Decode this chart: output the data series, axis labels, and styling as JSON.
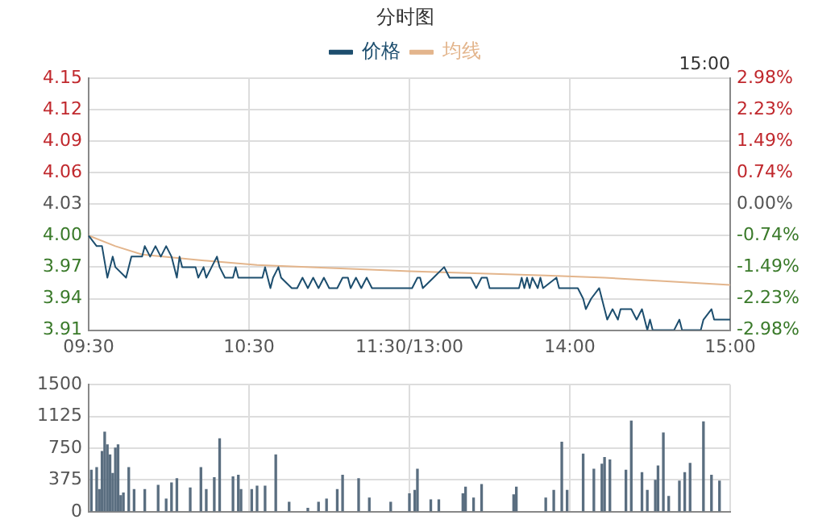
{
  "chart_data": [
    {
      "type": "line",
      "title": "分时图",
      "annotations": [
        "15:00"
      ],
      "categories": [
        "09:30",
        null,
        null,
        null,
        null,
        null,
        null,
        null,
        null,
        null,
        null,
        null,
        null,
        null,
        null,
        null,
        null,
        null,
        null,
        null,
        null,
        null,
        null,
        null,
        null,
        null,
        null,
        null,
        null,
        null,
        null,
        null,
        null,
        null,
        null,
        null,
        null,
        null,
        null,
        null,
        null,
        null,
        null,
        null,
        null,
        null,
        null,
        null,
        null,
        null,
        null,
        null,
        null,
        null,
        null,
        null,
        null,
        null,
        null,
        null,
        "10:30",
        null,
        null,
        null,
        null,
        null,
        null,
        null,
        null,
        null,
        null,
        null,
        null,
        null,
        null,
        null,
        null,
        null,
        null,
        null,
        null,
        null,
        null,
        null,
        null,
        null,
        null,
        null,
        null,
        null,
        null,
        null,
        null,
        null,
        null,
        null,
        null,
        null,
        null,
        null,
        null,
        null,
        null,
        null,
        null,
        null,
        null,
        null,
        null,
        null,
        null,
        null,
        null,
        null,
        null,
        null,
        null,
        null,
        null,
        null,
        "11:30/13:00",
        null,
        null,
        null,
        null,
        null,
        null,
        null,
        null,
        null,
        null,
        null,
        null,
        null,
        null,
        null,
        null,
        null,
        null,
        null,
        null,
        null,
        null,
        null,
        null,
        null,
        null,
        null,
        null,
        null,
        null,
        null,
        null,
        null,
        null,
        null,
        null,
        null,
        null,
        null,
        null,
        null,
        null,
        null,
        null,
        null,
        null,
        null,
        null,
        null,
        null,
        null,
        null,
        null,
        null,
        null,
        null,
        null,
        null,
        null,
        "14:00",
        null,
        null,
        null,
        null,
        null,
        null,
        null,
        null,
        null,
        null,
        null,
        null,
        null,
        null,
        null,
        null,
        null,
        null,
        null,
        null,
        null,
        null,
        null,
        null,
        null,
        null,
        null,
        null,
        null,
        null,
        null,
        null,
        null,
        null,
        null,
        null,
        null,
        null,
        null,
        null,
        null,
        null,
        null,
        null,
        null,
        null,
        null,
        null,
        null,
        null,
        null,
        null,
        null,
        null,
        null,
        null,
        null,
        null,
        null,
        "15:00"
      ],
      "ylim": [
        3.91,
        4.15
      ],
      "yticks": [
        {
          "value": 3.91,
          "label": "3.91"
        },
        {
          "value": 3.94,
          "label": "3.94"
        },
        {
          "value": 3.97,
          "label": "3.97"
        },
        {
          "value": 4,
          "label": "4.00"
        },
        {
          "value": 4.03,
          "label": "4.03"
        },
        {
          "value": 4.06,
          "label": "4.06"
        },
        {
          "value": 4.09,
          "label": "4.09"
        },
        {
          "value": 4.12,
          "label": "4.12"
        },
        {
          "value": 4.15,
          "label": "4.15"
        }
      ],
      "y2lim": [
        -2.98,
        2.98
      ],
      "y2ticks": [
        {
          "value": -2.98,
          "label": "-2.98%"
        },
        {
          "value": -2.23,
          "label": "-2.23%"
        },
        {
          "value": -1.49,
          "label": "-1.49%"
        },
        {
          "value": -0.74,
          "label": "-0.74%"
        },
        {
          "value": 0,
          "label": "0.00%"
        },
        {
          "value": 0.74,
          "label": "0.74%"
        },
        {
          "value": 1.49,
          "label": "1.49%"
        },
        {
          "value": 2.23,
          "label": "2.23%"
        },
        {
          "value": 2.98,
          "label": "2.98%"
        }
      ],
      "grid": true,
      "legend": "top",
      "marker": "none",
      "series": [
        {
          "name": "价格",
          "color": "#1d4e6e",
          "values": [
            4.0,
            null,
            null,
            3.99,
            null,
            3.99,
            null,
            3.96,
            null,
            3.98,
            3.97,
            null,
            null,
            null,
            3.96,
            null,
            3.98,
            null,
            null,
            null,
            3.98,
            3.99,
            null,
            3.98,
            null,
            3.99,
            null,
            3.98,
            null,
            3.99,
            null,
            3.98,
            null,
            3.96,
            3.98,
            3.97,
            null,
            null,
            null,
            null,
            3.97,
            3.96,
            null,
            3.97,
            3.96,
            null,
            3.97,
            null,
            3.98,
            3.97,
            null,
            3.96,
            null,
            null,
            3.96,
            3.97,
            3.96,
            null,
            null,
            null,
            null,
            null,
            null,
            null,
            null,
            3.96,
            3.97,
            null,
            3.95,
            3.96,
            null,
            3.97,
            3.96,
            null,
            null,
            null,
            3.95,
            null,
            3.95,
            null,
            3.96,
            null,
            3.95,
            null,
            3.96,
            null,
            3.95,
            null,
            3.96,
            null,
            3.95,
            null,
            null,
            3.95,
            null,
            3.96,
            null,
            3.96,
            3.95,
            null,
            3.96,
            null,
            3.95,
            null,
            3.96,
            null,
            3.95,
            null,
            null,
            null,
            null,
            null,
            null,
            null,
            3.95,
            null,
            null,
            null,
            null,
            null,
            null,
            3.95,
            null,
            3.96,
            3.96,
            3.95,
            null,
            null,
            null,
            3.96,
            null,
            null,
            null,
            3.97,
            null,
            3.96,
            null,
            null,
            null,
            null,
            null,
            null,
            null,
            3.96,
            null,
            3.95,
            null,
            3.96,
            null,
            3.96,
            3.95,
            null,
            null,
            null,
            null,
            null,
            null,
            null,
            null,
            null,
            null,
            3.95,
            3.96,
            3.95,
            3.96,
            3.95,
            3.96,
            null,
            3.95,
            3.96,
            3.95,
            null,
            null,
            null,
            null,
            3.96,
            3.95,
            null,
            null,
            null,
            null,
            null,
            null,
            3.95,
            null,
            3.94,
            3.93,
            null,
            3.94,
            null,
            null,
            3.95,
            null,
            3.93,
            3.92,
            null,
            3.93,
            null,
            3.92,
            3.93,
            null,
            null,
            null,
            3.93,
            null,
            3.92,
            null,
            3.93,
            null,
            3.91,
            3.92,
            3.91,
            null,
            null,
            null,
            null,
            null,
            null,
            null,
            3.91,
            null,
            3.92,
            3.91,
            null,
            null,
            null,
            null,
            null,
            null,
            3.91,
            3.92,
            null,
            null,
            3.93,
            3.92,
            null,
            null,
            null,
            null,
            null,
            3.92
          ]
        },
        {
          "name": "均线",
          "color": "#e3b58c",
          "values": [
            4.0,
            null,
            null,
            null,
            null,
            null,
            null,
            null,
            null,
            null,
            3.99,
            null,
            null,
            null,
            null,
            null,
            null,
            null,
            null,
            null,
            3.982,
            null,
            null,
            null,
            null,
            null,
            null,
            null,
            null,
            null,
            null,
            null,
            null,
            null,
            null,
            null,
            null,
            null,
            null,
            null,
            3.977,
            null,
            null,
            null,
            null,
            null,
            null,
            null,
            null,
            null,
            null,
            null,
            null,
            null,
            null,
            null,
            null,
            null,
            null,
            null,
            null,
            null,
            null,
            3.972,
            null,
            null,
            null,
            null,
            null,
            null,
            null,
            null,
            null,
            null,
            null,
            null,
            null,
            null,
            null,
            null,
            null,
            null,
            null,
            null,
            null,
            null,
            null,
            null,
            null,
            null,
            null,
            null,
            null,
            null,
            null,
            null,
            null,
            null,
            null,
            null,
            null,
            null,
            null,
            null,
            null,
            null,
            null,
            null,
            null,
            null,
            null,
            null,
            null,
            null,
            null,
            null,
            null,
            null,
            null,
            null,
            3.966,
            null,
            null,
            null,
            null,
            null,
            null,
            null,
            null,
            null,
            null,
            null,
            null,
            null,
            null,
            null,
            null,
            null,
            null,
            null,
            null,
            null,
            null,
            null,
            null,
            null,
            null,
            null,
            null,
            null,
            null,
            null,
            null,
            null,
            null,
            null,
            null,
            null,
            null,
            null,
            null,
            null,
            null,
            null,
            null,
            null,
            null,
            null,
            null,
            null,
            null,
            3.962,
            null,
            null,
            null,
            null,
            null,
            null,
            null,
            null,
            null,
            null,
            null,
            null,
            null,
            null,
            null,
            null,
            null,
            null,
            null,
            null,
            null,
            3.96,
            null,
            null,
            null,
            null,
            null,
            null,
            null,
            null,
            null,
            null,
            null,
            null,
            null,
            null,
            null,
            null,
            null,
            null,
            null,
            null,
            null,
            null,
            null,
            null,
            null,
            null,
            null,
            null,
            null,
            null,
            null,
            null,
            null,
            null,
            null,
            null,
            null,
            null,
            null,
            null,
            null,
            null,
            null,
            null,
            null,
            null,
            3.953
          ]
        }
      ]
    },
    {
      "type": "bar",
      "color": "#5a6e80",
      "tick_labels": "y",
      "grid": true,
      "categories": [
        null,
        null,
        null,
        null,
        null,
        null,
        null,
        null,
        null,
        null,
        null,
        null,
        null,
        null,
        null,
        null,
        null,
        null,
        null,
        null,
        null,
        null,
        null,
        null,
        null,
        null,
        null,
        null,
        null,
        null,
        null,
        null,
        null,
        null,
        null,
        null,
        null,
        null,
        null,
        null,
        null,
        null,
        null,
        null,
        null,
        null,
        null,
        null,
        null,
        null,
        null,
        null,
        null,
        null,
        null,
        null,
        null,
        null,
        null,
        null,
        null,
        null,
        null,
        null,
        null,
        null,
        null,
        null,
        null,
        null,
        null,
        null,
        null,
        null,
        null,
        null,
        null,
        null,
        null,
        null,
        null,
        null,
        null,
        null,
        null,
        null,
        null,
        null,
        null,
        null,
        null,
        null,
        null,
        null,
        null,
        null,
        null,
        null,
        null,
        null,
        null,
        null,
        null,
        null,
        null,
        null,
        null,
        null,
        null,
        null,
        null,
        null,
        null,
        null,
        null,
        null,
        null,
        null,
        null,
        null,
        null,
        null,
        null,
        null,
        null,
        null,
        null,
        null,
        null,
        null,
        null,
        null,
        null,
        null,
        null,
        null,
        null,
        null,
        null,
        null,
        null,
        null,
        null,
        null,
        null,
        null,
        null,
        null,
        null,
        null,
        null,
        null,
        null,
        null,
        null,
        null,
        null,
        null,
        null,
        null,
        null,
        null,
        null,
        null,
        null,
        null,
        null,
        null,
        null,
        null,
        null,
        null,
        null,
        null,
        null,
        null,
        null,
        null,
        null,
        null,
        null,
        null,
        null,
        null,
        null,
        null,
        null,
        null,
        null,
        null,
        null,
        null,
        null,
        null,
        null,
        null,
        null,
        null,
        null,
        null,
        null,
        null,
        null,
        null,
        null,
        null,
        null,
        null,
        null,
        null,
        null,
        null,
        null,
        null,
        null,
        null,
        null,
        null,
        null,
        null,
        null,
        null,
        null,
        null,
        null,
        null,
        null,
        null,
        null,
        null,
        null,
        null,
        null,
        null,
        null,
        null,
        null,
        null,
        null,
        null,
        null
      ],
      "ylim": [
        0,
        1500
      ],
      "yticks": [
        0,
        375,
        750,
        1125,
        1500
      ],
      "values": [
        null,
        490,
        null,
        520,
        260,
        710,
        940,
        790,
        670,
        450,
        750,
        790,
        190,
        220,
        null,
        520,
        null,
        260,
        null,
        null,
        null,
        260,
        null,
        null,
        null,
        null,
        310,
        null,
        null,
        150,
        null,
        340,
        null,
        390,
        null,
        null,
        null,
        null,
        280,
        null,
        null,
        null,
        520,
        null,
        260,
        null,
        null,
        400,
        null,
        860,
        null,
        null,
        null,
        null,
        410,
        null,
        430,
        260,
        null,
        null,
        null,
        260,
        null,
        300,
        null,
        null,
        300,
        null,
        null,
        null,
        670,
        null,
        null,
        null,
        null,
        110,
        null,
        null,
        null,
        null,
        null,
        null,
        40,
        null,
        null,
        null,
        110,
        null,
        null,
        150,
        null,
        null,
        null,
        260,
        null,
        430,
        null,
        null,
        null,
        null,
        null,
        390,
        null,
        null,
        null,
        160,
        null,
        null,
        null,
        null,
        null,
        null,
        null,
        110,
        null,
        null,
        null,
        null,
        null,
        null,
        210,
        null,
        250,
        500,
        null,
        null,
        null,
        null,
        140,
        null,
        null,
        140,
        null,
        null,
        null,
        null,
        null,
        null,
        null,
        null,
        210,
        290,
        null,
        null,
        160,
        null,
        null,
        320,
        null,
        null,
        null,
        null,
        null,
        null,
        null,
        null,
        null,
        null,
        null,
        200,
        290,
        null,
        null,
        null,
        null,
        null,
        null,
        null,
        null,
        null,
        null,
        160,
        null,
        null,
        250,
        null,
        null,
        820,
        null,
        250,
        null,
        null,
        null,
        null,
        null,
        680,
        null,
        null,
        null,
        500,
        null,
        null,
        560,
        640,
        null,
        610,
        null,
        null,
        null,
        null,
        null,
        490,
        null,
        1070,
        null,
        null,
        null,
        460,
        null,
        250,
        null,
        null,
        370,
        540,
        null,
        930,
        null,
        180,
        null,
        null,
        null,
        360,
        null,
        460,
        null,
        570,
        null,
        null,
        null,
        null,
        1060,
        null,
        null,
        430,
        null,
        null,
        360,
        null,
        null,
        null,
        null
      ]
    }
  ]
}
